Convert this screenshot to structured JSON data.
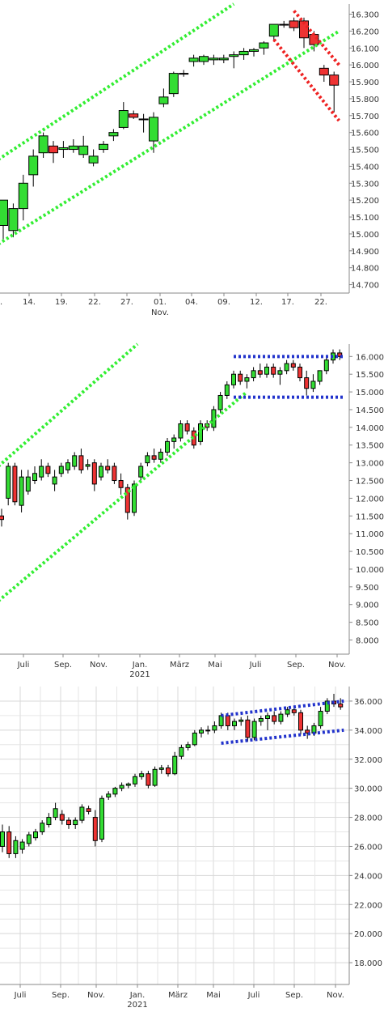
{
  "chart_data": [
    {
      "type": "candlestick",
      "x_tick_labels": [
        "14.",
        "19.",
        "22.",
        "27.",
        "01.",
        "04.",
        "09.",
        "12.",
        "17.",
        "22."
      ],
      "x_sub_labels": [
        {
          "under": "01.",
          "text": "Nov."
        }
      ],
      "y_ticks": [
        14.7,
        14.8,
        14.9,
        15.0,
        15.1,
        15.2,
        15.3,
        15.4,
        15.5,
        15.6,
        15.7,
        15.8,
        15.9,
        16.0,
        16.1,
        16.2,
        16.3
      ],
      "y_tick_labels": [
        "14.700",
        "14.800",
        "14.900",
        "15.000",
        "15.100",
        "15.200",
        "15.300",
        "15.400",
        "15.500",
        "15.600",
        "15.700",
        "15.800",
        "15.900",
        "16.000",
        "16.100",
        "16.200",
        "16.300"
      ],
      "ylim": [
        14.65,
        16.36
      ],
      "grid": false,
      "candles": [
        {
          "o": 15.05,
          "h": 15.2,
          "l": 14.95,
          "c": 15.2
        },
        {
          "o": 15.02,
          "h": 15.18,
          "l": 14.98,
          "c": 15.15
        },
        {
          "o": 15.15,
          "h": 15.35,
          "l": 15.08,
          "c": 15.3
        },
        {
          "o": 15.35,
          "h": 15.5,
          "l": 15.28,
          "c": 15.46
        },
        {
          "o": 15.48,
          "h": 15.6,
          "l": 15.45,
          "c": 15.58
        },
        {
          "o": 15.52,
          "h": 15.55,
          "l": 15.42,
          "c": 15.48
        },
        {
          "o": 15.5,
          "h": 15.55,
          "l": 15.45,
          "c": 15.51
        },
        {
          "o": 15.5,
          "h": 15.56,
          "l": 15.48,
          "c": 15.52
        },
        {
          "o": 15.47,
          "h": 15.58,
          "l": 15.45,
          "c": 15.52
        },
        {
          "o": 15.42,
          "h": 15.5,
          "l": 15.4,
          "c": 15.46
        },
        {
          "o": 15.5,
          "h": 15.55,
          "l": 15.48,
          "c": 15.53
        },
        {
          "o": 15.58,
          "h": 15.62,
          "l": 15.55,
          "c": 15.6
        },
        {
          "o": 15.63,
          "h": 15.78,
          "l": 15.62,
          "c": 15.73
        },
        {
          "o": 15.71,
          "h": 15.73,
          "l": 15.68,
          "c": 15.69
        },
        {
          "o": 15.68,
          "h": 15.71,
          "l": 15.6,
          "c": 15.68
        },
        {
          "o": 15.55,
          "h": 15.72,
          "l": 15.48,
          "c": 15.69
        },
        {
          "o": 15.77,
          "h": 15.86,
          "l": 15.75,
          "c": 15.81
        },
        {
          "o": 15.83,
          "h": 15.96,
          "l": 15.81,
          "c": 15.95
        },
        {
          "o": 15.95,
          "h": 15.97,
          "l": 15.93,
          "c": 15.95
        },
        {
          "o": 16.02,
          "h": 16.06,
          "l": 15.99,
          "c": 16.04
        },
        {
          "o": 16.02,
          "h": 16.06,
          "l": 16.0,
          "c": 16.05
        },
        {
          "o": 16.03,
          "h": 16.06,
          "l": 16.0,
          "c": 16.04
        },
        {
          "o": 16.03,
          "h": 16.06,
          "l": 16.01,
          "c": 16.04
        },
        {
          "o": 16.05,
          "h": 16.08,
          "l": 15.98,
          "c": 16.06
        },
        {
          "o": 16.06,
          "h": 16.1,
          "l": 16.03,
          "c": 16.08
        },
        {
          "o": 16.08,
          "h": 16.1,
          "l": 16.05,
          "c": 16.09
        },
        {
          "o": 16.1,
          "h": 16.14,
          "l": 16.06,
          "c": 16.13
        },
        {
          "o": 16.17,
          "h": 16.24,
          "l": 16.14,
          "c": 16.24
        },
        {
          "o": 16.24,
          "h": 16.26,
          "l": 16.22,
          "c": 16.24
        },
        {
          "o": 16.26,
          "h": 16.28,
          "l": 16.2,
          "c": 16.22
        },
        {
          "o": 16.26,
          "h": 16.28,
          "l": 16.1,
          "c": 16.16
        },
        {
          "o": 16.18,
          "h": 16.2,
          "l": 16.08,
          "c": 16.12
        },
        {
          "o": 15.98,
          "h": 16.0,
          "l": 15.9,
          "c": 15.94
        },
        {
          "o": 15.94,
          "h": 15.96,
          "l": 15.72,
          "c": 15.88
        }
      ],
      "up_color": "#33dd33",
      "down_color": "#ee3333",
      "trend_lines": [
        {
          "color": "#33ee33",
          "style": "dotted",
          "from": {
            "x": -0.5,
            "y": 15.44
          },
          "to": {
            "x": 23.0,
            "y": 16.36
          }
        },
        {
          "color": "#33ee33",
          "style": "dotted",
          "from": {
            "x": -0.5,
            "y": 14.94
          },
          "to": {
            "x": 33.5,
            "y": 16.2
          }
        },
        {
          "color": "#ee2222",
          "style": "dotted",
          "from": {
            "x": 27.0,
            "y": 16.15
          },
          "to": {
            "x": 33.5,
            "y": 15.67
          }
        },
        {
          "color": "#ee2222",
          "style": "dotted",
          "from": {
            "x": 29.0,
            "y": 16.32
          },
          "to": {
            "x": 33.5,
            "y": 16.0
          }
        }
      ]
    },
    {
      "type": "candlestick",
      "x_tick_labels": [
        "Juli",
        "Sep.",
        "Nov.",
        "Jan.",
        "März",
        "Mai",
        "Juli",
        "Sep.",
        "Nov."
      ],
      "x_sub_labels": [
        {
          "under": "Jan.",
          "text": "2021"
        }
      ],
      "y_ticks": [
        8.0,
        8.5,
        9.0,
        9.5,
        10.0,
        10.5,
        11.0,
        11.5,
        12.0,
        12.5,
        13.0,
        13.5,
        14.0,
        14.5,
        15.0,
        15.5,
        16.0
      ],
      "y_tick_labels": [
        "8.000",
        "8.500",
        "9.000",
        "9.500",
        "10.000",
        "10.500",
        "11.000",
        "11.500",
        "12.000",
        "12.500",
        "13.000",
        "13.500",
        "14.000",
        "14.500",
        "15.000",
        "15.500",
        "16.000"
      ],
      "ylim": [
        7.6,
        16.35
      ],
      "grid": false,
      "candles": [
        {
          "o": 11.5,
          "h": 11.7,
          "l": 11.2,
          "c": 11.4
        },
        {
          "o": 12.0,
          "h": 13.0,
          "l": 11.8,
          "c": 12.9
        },
        {
          "o": 12.9,
          "h": 13.0,
          "l": 11.8,
          "c": 11.9
        },
        {
          "o": 11.8,
          "h": 12.8,
          "l": 11.6,
          "c": 12.6
        },
        {
          "o": 12.2,
          "h": 12.8,
          "l": 12.1,
          "c": 12.6
        },
        {
          "o": 12.5,
          "h": 12.9,
          "l": 12.4,
          "c": 12.7
        },
        {
          "o": 12.6,
          "h": 13.1,
          "l": 12.5,
          "c": 12.9
        },
        {
          "o": 12.9,
          "h": 13.0,
          "l": 12.6,
          "c": 12.7
        },
        {
          "o": 12.4,
          "h": 12.8,
          "l": 12.2,
          "c": 12.6
        },
        {
          "o": 12.7,
          "h": 13.0,
          "l": 12.6,
          "c": 12.9
        },
        {
          "o": 12.8,
          "h": 13.1,
          "l": 12.7,
          "c": 13.0
        },
        {
          "o": 12.9,
          "h": 13.3,
          "l": 12.8,
          "c": 13.2
        },
        {
          "o": 13.2,
          "h": 13.4,
          "l": 12.7,
          "c": 12.8
        },
        {
          "o": 12.9,
          "h": 13.1,
          "l": 12.8,
          "c": 12.95
        },
        {
          "o": 13.0,
          "h": 13.1,
          "l": 12.2,
          "c": 12.4
        },
        {
          "o": 12.6,
          "h": 13.0,
          "l": 12.5,
          "c": 12.9
        },
        {
          "o": 12.9,
          "h": 13.1,
          "l": 12.7,
          "c": 12.8
        },
        {
          "o": 12.9,
          "h": 13.0,
          "l": 12.4,
          "c": 12.5
        },
        {
          "o": 12.5,
          "h": 12.7,
          "l": 12.1,
          "c": 12.3
        },
        {
          "o": 12.3,
          "h": 12.4,
          "l": 11.4,
          "c": 11.6
        },
        {
          "o": 11.6,
          "h": 12.5,
          "l": 11.5,
          "c": 12.4
        },
        {
          "o": 12.6,
          "h": 13.0,
          "l": 12.5,
          "c": 12.9
        },
        {
          "o": 13.0,
          "h": 13.3,
          "l": 12.9,
          "c": 13.2
        },
        {
          "o": 13.2,
          "h": 13.4,
          "l": 13.0,
          "c": 13.1
        },
        {
          "o": 13.1,
          "h": 13.4,
          "l": 13.0,
          "c": 13.3
        },
        {
          "o": 13.3,
          "h": 13.7,
          "l": 13.2,
          "c": 13.6
        },
        {
          "o": 13.6,
          "h": 13.8,
          "l": 13.4,
          "c": 13.7
        },
        {
          "o": 13.7,
          "h": 14.2,
          "l": 13.6,
          "c": 14.1
        },
        {
          "o": 14.1,
          "h": 14.2,
          "l": 13.8,
          "c": 13.9
        },
        {
          "o": 13.9,
          "h": 14.0,
          "l": 13.4,
          "c": 13.5
        },
        {
          "o": 13.6,
          "h": 14.2,
          "l": 13.5,
          "c": 14.1
        },
        {
          "o": 14.1,
          "h": 14.2,
          "l": 13.9,
          "c": 14.0
        },
        {
          "o": 14.0,
          "h": 14.6,
          "l": 13.9,
          "c": 14.5
        },
        {
          "o": 14.5,
          "h": 15.0,
          "l": 14.4,
          "c": 14.9
        },
        {
          "o": 14.9,
          "h": 15.3,
          "l": 14.8,
          "c": 15.2
        },
        {
          "o": 15.2,
          "h": 15.6,
          "l": 15.1,
          "c": 15.5
        },
        {
          "o": 15.5,
          "h": 15.6,
          "l": 15.2,
          "c": 15.3
        },
        {
          "o": 15.3,
          "h": 15.5,
          "l": 15.1,
          "c": 15.4
        },
        {
          "o": 15.4,
          "h": 15.7,
          "l": 15.3,
          "c": 15.6
        },
        {
          "o": 15.6,
          "h": 15.8,
          "l": 15.4,
          "c": 15.5
        },
        {
          "o": 15.5,
          "h": 15.8,
          "l": 15.4,
          "c": 15.7
        },
        {
          "o": 15.7,
          "h": 15.8,
          "l": 15.4,
          "c": 15.5
        },
        {
          "o": 15.5,
          "h": 15.7,
          "l": 15.2,
          "c": 15.6
        },
        {
          "o": 15.6,
          "h": 15.9,
          "l": 15.5,
          "c": 15.8
        },
        {
          "o": 15.8,
          "h": 15.9,
          "l": 15.6,
          "c": 15.7
        },
        {
          "o": 15.7,
          "h": 15.8,
          "l": 15.3,
          "c": 15.4
        },
        {
          "o": 15.4,
          "h": 15.6,
          "l": 14.9,
          "c": 15.1
        },
        {
          "o": 15.1,
          "h": 15.5,
          "l": 15.0,
          "c": 15.3
        },
        {
          "o": 15.3,
          "h": 15.6,
          "l": 15.2,
          "c": 15.6
        },
        {
          "o": 15.6,
          "h": 16.0,
          "l": 15.5,
          "c": 15.9
        },
        {
          "o": 15.9,
          "h": 16.2,
          "l": 15.8,
          "c": 16.1
        },
        {
          "o": 16.1,
          "h": 16.2,
          "l": 15.9,
          "c": 16.0
        }
      ],
      "up_color": "#33dd33",
      "down_color": "#ee3333",
      "trend_lines": [
        {
          "color": "#33ee33",
          "style": "dotted",
          "from": {
            "x": -0.5,
            "y": 12.9
          },
          "to": {
            "x": 20.5,
            "y": 16.35
          }
        },
        {
          "color": "#33ee33",
          "style": "dotted",
          "from": {
            "x": -0.5,
            "y": 9.1
          },
          "to": {
            "x": 37.0,
            "y": 15.0
          }
        },
        {
          "color": "#2233cc",
          "style": "dotted",
          "from": {
            "x": 35.0,
            "y": 16.0
          },
          "to": {
            "x": 51.5,
            "y": 16.0
          }
        },
        {
          "color": "#2233cc",
          "style": "dotted",
          "from": {
            "x": 35.0,
            "y": 14.85
          },
          "to": {
            "x": 51.5,
            "y": 14.85
          }
        }
      ]
    },
    {
      "type": "candlestick",
      "x_tick_labels": [
        "Juli",
        "Sep.",
        "Nov.",
        "Jan.",
        "März",
        "Mai",
        "Juli",
        "Sep.",
        "Nov."
      ],
      "x_sub_labels": [
        {
          "under": "Jan.",
          "text": "2021"
        }
      ],
      "y_ticks": [
        18.0,
        20.0,
        22.0,
        24.0,
        26.0,
        28.0,
        30.0,
        32.0,
        34.0,
        36.0
      ],
      "y_tick_labels": [
        "18.000",
        "20.000",
        "22.000",
        "24.000",
        "26.000",
        "28.000",
        "30.000",
        "32.000",
        "34.000",
        "36.000"
      ],
      "ylim": [
        16.5,
        37.0
      ],
      "grid": true,
      "candles": [
        {
          "o": 26.0,
          "h": 27.5,
          "l": 25.6,
          "c": 27.0
        },
        {
          "o": 27.0,
          "h": 27.4,
          "l": 25.2,
          "c": 25.5
        },
        {
          "o": 25.5,
          "h": 26.7,
          "l": 25.2,
          "c": 26.4
        },
        {
          "o": 25.8,
          "h": 26.5,
          "l": 25.5,
          "c": 26.3
        },
        {
          "o": 26.2,
          "h": 27.0,
          "l": 26.0,
          "c": 26.8
        },
        {
          "o": 26.6,
          "h": 27.2,
          "l": 26.4,
          "c": 27.0
        },
        {
          "o": 27.0,
          "h": 27.8,
          "l": 26.8,
          "c": 27.6
        },
        {
          "o": 27.5,
          "h": 28.3,
          "l": 27.3,
          "c": 28.0
        },
        {
          "o": 28.0,
          "h": 29.0,
          "l": 27.8,
          "c": 28.6
        },
        {
          "o": 28.2,
          "h": 28.5,
          "l": 27.5,
          "c": 27.8
        },
        {
          "o": 27.8,
          "h": 28.0,
          "l": 27.2,
          "c": 27.5
        },
        {
          "o": 27.5,
          "h": 28.0,
          "l": 27.2,
          "c": 27.8
        },
        {
          "o": 27.8,
          "h": 28.9,
          "l": 27.6,
          "c": 28.7
        },
        {
          "o": 28.6,
          "h": 28.8,
          "l": 28.2,
          "c": 28.4
        },
        {
          "o": 28.0,
          "h": 28.5,
          "l": 26.0,
          "c": 26.4
        },
        {
          "o": 26.5,
          "h": 29.5,
          "l": 26.3,
          "c": 29.3
        },
        {
          "o": 29.4,
          "h": 29.8,
          "l": 29.2,
          "c": 29.6
        },
        {
          "o": 29.6,
          "h": 30.1,
          "l": 29.4,
          "c": 30.0
        },
        {
          "o": 30.0,
          "h": 30.4,
          "l": 29.8,
          "c": 30.2
        },
        {
          "o": 30.2,
          "h": 30.4,
          "l": 30.0,
          "c": 30.3
        },
        {
          "o": 30.3,
          "h": 31.0,
          "l": 30.1,
          "c": 30.8
        },
        {
          "o": 30.8,
          "h": 31.2,
          "l": 30.6,
          "c": 31.0
        },
        {
          "o": 31.0,
          "h": 31.2,
          "l": 30.0,
          "c": 30.2
        },
        {
          "o": 30.2,
          "h": 31.5,
          "l": 30.1,
          "c": 31.3
        },
        {
          "o": 31.3,
          "h": 31.6,
          "l": 31.0,
          "c": 31.4
        },
        {
          "o": 31.4,
          "h": 31.6,
          "l": 30.8,
          "c": 31.0
        },
        {
          "o": 31.0,
          "h": 32.5,
          "l": 30.9,
          "c": 32.2
        },
        {
          "o": 32.2,
          "h": 33.0,
          "l": 32.0,
          "c": 32.8
        },
        {
          "o": 32.8,
          "h": 33.2,
          "l": 32.6,
          "c": 33.0
        },
        {
          "o": 33.0,
          "h": 34.0,
          "l": 32.9,
          "c": 33.8
        },
        {
          "o": 33.8,
          "h": 34.2,
          "l": 33.5,
          "c": 34.0
        },
        {
          "o": 34.0,
          "h": 34.3,
          "l": 33.7,
          "c": 34.0
        },
        {
          "o": 34.0,
          "h": 34.6,
          "l": 33.8,
          "c": 34.3
        },
        {
          "o": 34.3,
          "h": 35.2,
          "l": 34.1,
          "c": 35.0
        },
        {
          "o": 35.0,
          "h": 35.2,
          "l": 34.0,
          "c": 34.3
        },
        {
          "o": 34.3,
          "h": 34.8,
          "l": 34.0,
          "c": 34.6
        },
        {
          "o": 34.6,
          "h": 34.9,
          "l": 34.3,
          "c": 34.7
        },
        {
          "o": 34.7,
          "h": 35.0,
          "l": 33.2,
          "c": 33.5
        },
        {
          "o": 33.5,
          "h": 34.8,
          "l": 33.3,
          "c": 34.6
        },
        {
          "o": 34.6,
          "h": 35.0,
          "l": 34.3,
          "c": 34.8
        },
        {
          "o": 34.8,
          "h": 35.2,
          "l": 34.0,
          "c": 35.0
        },
        {
          "o": 35.0,
          "h": 35.3,
          "l": 34.4,
          "c": 34.6
        },
        {
          "o": 34.6,
          "h": 35.3,
          "l": 34.4,
          "c": 35.1
        },
        {
          "o": 35.1,
          "h": 35.6,
          "l": 34.9,
          "c": 35.4
        },
        {
          "o": 35.4,
          "h": 35.6,
          "l": 35.0,
          "c": 35.2
        },
        {
          "o": 35.2,
          "h": 35.4,
          "l": 33.7,
          "c": 34.0
        },
        {
          "o": 34.0,
          "h": 34.3,
          "l": 33.4,
          "c": 33.8
        },
        {
          "o": 33.8,
          "h": 34.5,
          "l": 33.6,
          "c": 34.3
        },
        {
          "o": 34.3,
          "h": 35.6,
          "l": 34.1,
          "c": 35.3
        },
        {
          "o": 35.3,
          "h": 36.2,
          "l": 35.1,
          "c": 36.0
        },
        {
          "o": 36.0,
          "h": 36.5,
          "l": 35.6,
          "c": 35.8
        },
        {
          "o": 35.8,
          "h": 36.2,
          "l": 35.4,
          "c": 35.6
        }
      ],
      "up_color": "#33dd33",
      "down_color": "#ee3333",
      "trend_lines": [
        {
          "color": "#2233cc",
          "style": "dotted",
          "from": {
            "x": 33.0,
            "y": 35.0
          },
          "to": {
            "x": 51.5,
            "y": 36.0
          }
        },
        {
          "color": "#2233cc",
          "style": "dotted",
          "from": {
            "x": 33.0,
            "y": 33.1
          },
          "to": {
            "x": 51.5,
            "y": 34.0
          }
        }
      ]
    }
  ]
}
